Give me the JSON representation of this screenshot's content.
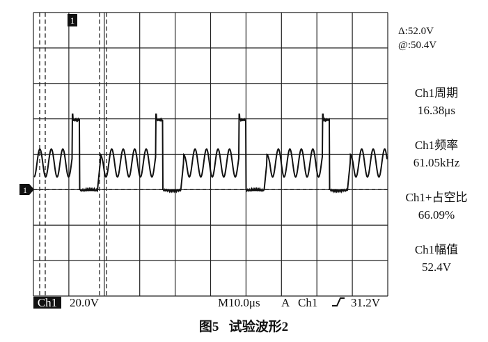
{
  "markers": {
    "trigger_position": "1",
    "ground": "1"
  },
  "readouts": {
    "cursor_delta": "Δ:52.0V",
    "cursor_at": "@:50.4V",
    "measurements": [
      {
        "label": "Ch1周期",
        "value": "16.38μs"
      },
      {
        "label": "Ch1频率",
        "value": "61.05kHz"
      },
      {
        "label": "Ch1+占空比",
        "value": "66.09%"
      },
      {
        "label": "Ch1幅值",
        "value": "52.4V"
      }
    ]
  },
  "status_bar": {
    "channel": "Ch1",
    "scale": "20.0V",
    "timebase": "M10.0μs",
    "trigger_mode": "A",
    "trigger_source": "Ch1",
    "trigger_level": "31.2V"
  },
  "caption": "图5   试验波形2"
}
